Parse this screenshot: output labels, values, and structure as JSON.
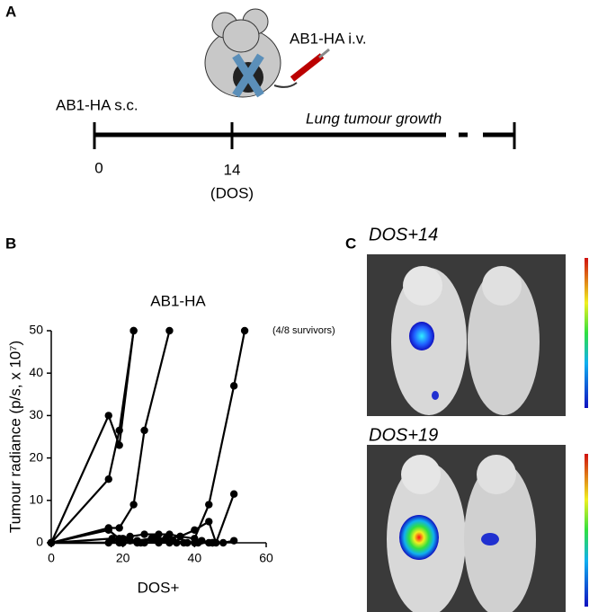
{
  "panel_labels": [
    "A",
    "B",
    "C"
  ],
  "timeline": {
    "sc_label": "AB1-HA s.c.",
    "iv_label": "AB1-HA i.v.",
    "growth_label": "Lung tumour growth",
    "day0": "0",
    "day14": "14",
    "dos": "(DOS)"
  },
  "images": {
    "top_label": "DOS+14",
    "bottom_label": "DOS+19"
  },
  "chart_data": {
    "type": "line",
    "title": "AB1-HA",
    "annotation": "(4/8 survivors)",
    "xlabel": "DOS+",
    "ylabel": "Tumour radiance (p/s, x 10⁷)",
    "xlim": [
      0,
      60
    ],
    "xticks": [
      0,
      20,
      40,
      60
    ],
    "ylim": [
      0,
      50
    ],
    "yticks": [
      0,
      10,
      20,
      30,
      40,
      50
    ],
    "color": "#000000",
    "series": [
      {
        "x": [
          0,
          16,
          19,
          23
        ],
        "values": [
          0,
          30,
          23,
          50
        ]
      },
      {
        "x": [
          0,
          16,
          19,
          23
        ],
        "values": [
          0,
          15,
          26.5,
          50
        ]
      },
      {
        "x": [
          0,
          16,
          19,
          23,
          26,
          33
        ],
        "values": [
          0,
          3.5,
          3.5,
          9,
          26.5,
          50
        ]
      },
      {
        "x": [
          0,
          16,
          19,
          22,
          26,
          30,
          33,
          36,
          40,
          44,
          51,
          54
        ],
        "values": [
          0,
          3,
          1,
          1.5,
          2,
          2,
          2,
          1.5,
          1,
          9,
          37,
          50
        ]
      },
      {
        "x": [
          0,
          16,
          20,
          24,
          28,
          32,
          36,
          40,
          44,
          46,
          51
        ],
        "values": [
          0,
          0,
          1,
          0.5,
          1,
          1,
          1.5,
          3,
          5,
          0,
          11.5
        ]
      },
      {
        "x": [
          0,
          17,
          22,
          26,
          30,
          34,
          38,
          42,
          45
        ],
        "values": [
          0,
          1,
          0.5,
          0,
          0.5,
          0.5,
          0,
          0.5,
          0
        ]
      },
      {
        "x": [
          0,
          19,
          24,
          29,
          33,
          37,
          41,
          44
        ],
        "values": [
          0,
          0,
          0,
          1,
          0,
          0,
          0,
          0
        ]
      },
      {
        "x": [
          0,
          20,
          25,
          30,
          35,
          40,
          45,
          48,
          51
        ],
        "values": [
          0,
          0,
          0,
          0,
          0,
          0,
          0,
          0,
          0.5
        ]
      }
    ]
  }
}
